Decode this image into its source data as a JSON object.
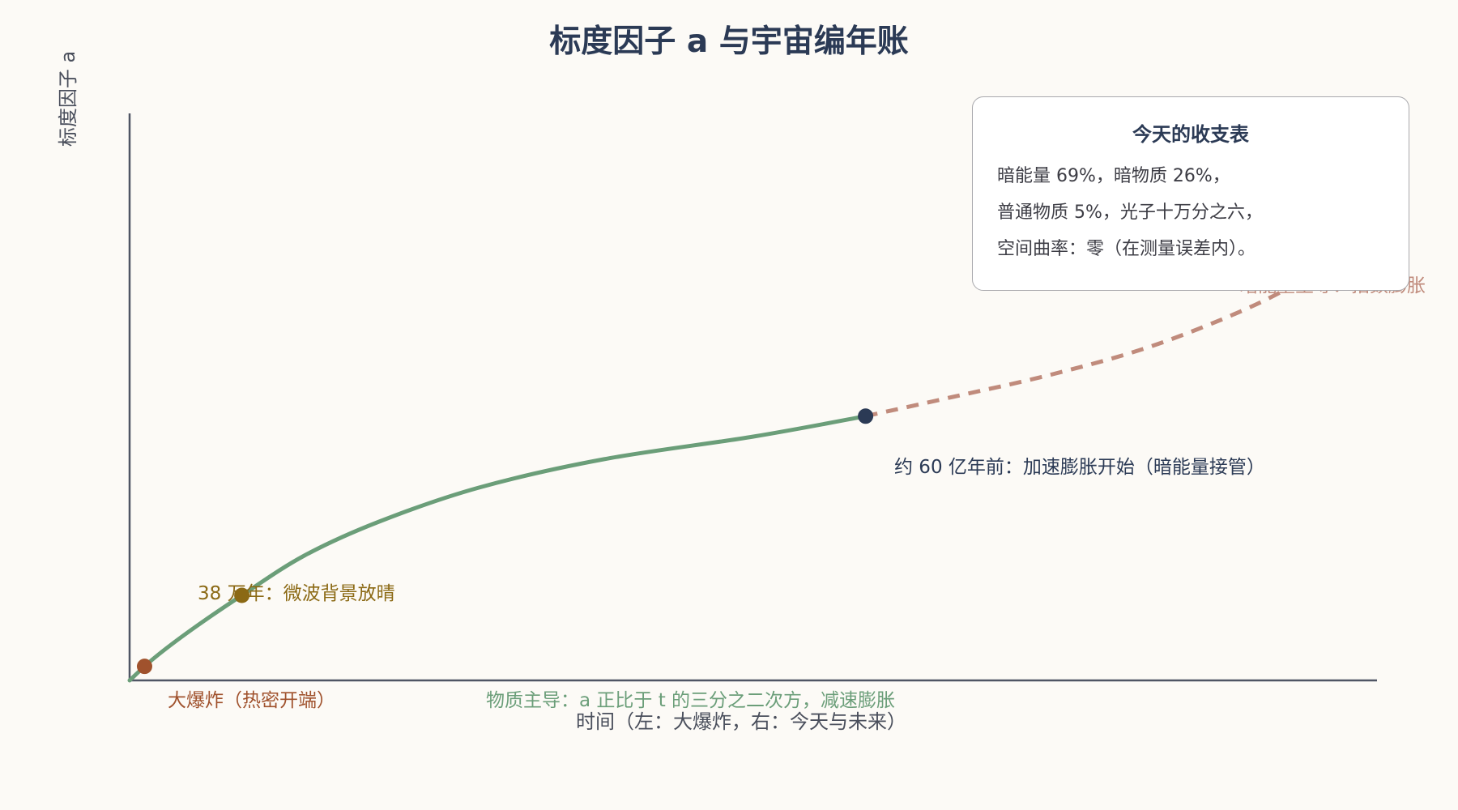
{
  "colors": {
    "background": "#fcfaf6",
    "axis": "#4f5564",
    "title": "#2b3a55",
    "matter_curve": "#6b9e79",
    "dark_energy_curve": "#c08b7c",
    "big_bang": "#a0522d",
    "cmb": "#8b6914",
    "acceleration": "#2b3a55"
  },
  "chart_data": {
    "type": "line",
    "title": "标度因子 a 与宇宙编年账",
    "xlabel": "时间（左：大爆炸，右：今天与未来）",
    "ylabel": "标度因子 a",
    "grid": false,
    "series": [
      {
        "style": "solid",
        "color": "#6b9e79",
        "points": [
          [
            0.0,
            0.0
          ],
          [
            0.02,
            0.04
          ],
          [
            0.05,
            0.09
          ],
          [
            0.09,
            0.15
          ],
          [
            0.14,
            0.22
          ],
          [
            0.2,
            0.28
          ],
          [
            0.28,
            0.34
          ],
          [
            0.38,
            0.39
          ],
          [
            0.5,
            0.43
          ],
          [
            0.59,
            0.466
          ]
        ]
      },
      {
        "style": "dashed",
        "color": "#c08b7c",
        "points": [
          [
            0.59,
            0.466
          ],
          [
            0.66,
            0.5
          ],
          [
            0.74,
            0.54
          ],
          [
            0.82,
            0.59
          ],
          [
            0.9,
            0.66
          ],
          [
            0.96,
            0.73
          ],
          [
            1.0,
            0.78
          ]
        ]
      }
    ],
    "milestones": [
      {
        "label": "大爆炸（热密开端）",
        "x": 0.012,
        "y": 0.022,
        "color": "#a0522d"
      },
      {
        "label": "38 万年：微波背景放晴",
        "x": 0.09,
        "y": 0.105,
        "color": "#8b6914"
      },
      {
        "label": "约 60 亿年前：加速膨胀开始（暗能量接管）",
        "x": 0.59,
        "y": 0.33,
        "color": "#2b3a55"
      }
    ],
    "annotations": [
      {
        "label": "物质主导：a 正比于 t 的三分之二次方，减速膨胀",
        "color": "#6b9e79"
      },
      {
        "label": "暗能量主导：指数膨胀",
        "color": "#c08b7c"
      }
    ]
  },
  "ledger": {
    "title": "今天的收支表",
    "lines": [
      "暗能量 69%，暗物质 26%，",
      "普通物质 5%，光子十万分之六，",
      "空间曲率：零（在测量误差内）。"
    ]
  }
}
